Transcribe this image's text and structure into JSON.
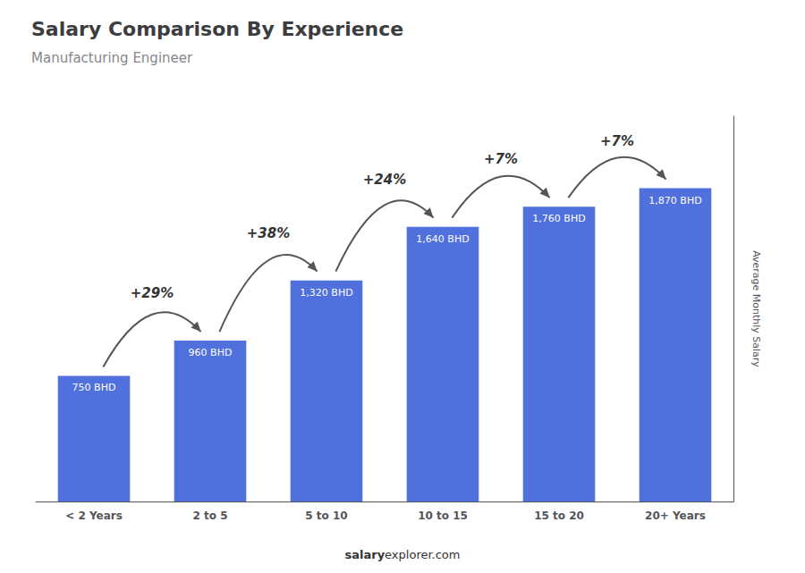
{
  "chart_data": {
    "type": "bar",
    "title": "Salary Comparison By Experience",
    "subtitle": "Manufacturing Engineer",
    "categories": [
      "< 2 Years",
      "2 to 5",
      "5 to 10",
      "10 to 15",
      "15 to 20",
      "20+ Years"
    ],
    "values": [
      750,
      960,
      1320,
      1640,
      1760,
      1870
    ],
    "value_labels": [
      "750 BHD",
      "960 BHD",
      "1,320 BHD",
      "1,640 BHD",
      "1,760 BHD",
      "1,870 BHD"
    ],
    "data_labels": true,
    "annotations": [
      "+29%",
      "+38%",
      "+24%",
      "+7%",
      "+7%"
    ],
    "ylabel": "Average Monthly Salary",
    "footer": [
      "salary",
      "explorer.com"
    ],
    "ylim": [
      0,
      2300
    ],
    "tick_labels": "x",
    "grid": false
  }
}
